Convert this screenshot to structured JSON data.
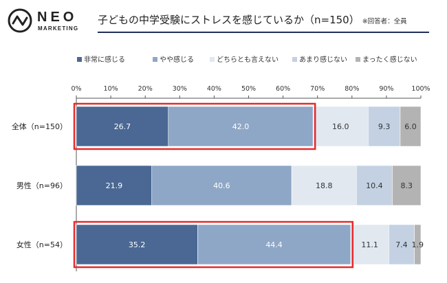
{
  "logo": {
    "line1": "NEO",
    "line2": "MARKETING"
  },
  "header": {
    "title": "子どもの中学受験にストレスを感じているか（n=150）",
    "note": "※回答者：全員"
  },
  "colors": {
    "series": [
      "#4a6893",
      "#8fa7c6",
      "#e1e8f0",
      "#c3d1e3",
      "#b3b3b3"
    ],
    "highlight": "#e52a2a",
    "title_rule": "#1f2e5a"
  },
  "chart_data": {
    "type": "bar",
    "orientation": "horizontal",
    "stacked": true,
    "title": "子どもの中学受験にストレスを感じているか（n=150）",
    "categories": [
      "全体（n=150）",
      "男性（n=96）",
      "女性（n=54）"
    ],
    "series": [
      {
        "name": "非常に感じる",
        "values": [
          26.7,
          21.9,
          35.2
        ]
      },
      {
        "name": "やや感じる",
        "values": [
          42.0,
          40.6,
          44.4
        ]
      },
      {
        "name": "どちらとも言えない",
        "values": [
          16.0,
          18.8,
          11.1
        ]
      },
      {
        "name": "あまり感じない",
        "values": [
          9.3,
          10.4,
          7.4
        ]
      },
      {
        "name": "まったく感じない",
        "values": [
          6.0,
          8.3,
          1.9
        ]
      }
    ],
    "x_ticks": [
      "0%",
      "10%",
      "20%",
      "30%",
      "40%",
      "50%",
      "60%",
      "70%",
      "80%",
      "90%",
      "100%"
    ],
    "xlim": [
      0,
      100
    ],
    "value_labels": [
      [
        "26.7",
        "42.0",
        "16.0",
        "9.3",
        "6.0"
      ],
      [
        "21.9",
        "40.6",
        "18.8",
        "10.4",
        "8.3"
      ],
      [
        "35.2",
        "44.4",
        "11.1",
        "7.4",
        "1.9"
      ]
    ],
    "highlighted_segments": [
      {
        "row": 0,
        "series_span": [
          0,
          1
        ]
      },
      {
        "row": 2,
        "series_span": [
          0,
          1
        ]
      }
    ],
    "legend_position": "top",
    "grid": false
  }
}
